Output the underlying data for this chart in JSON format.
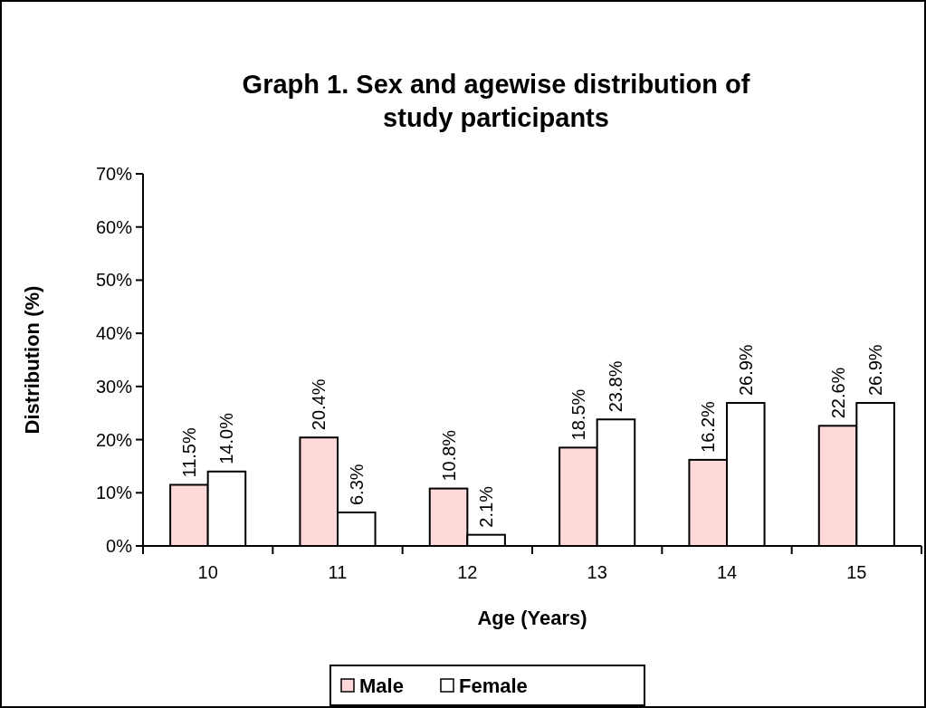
{
  "chart_data": {
    "type": "bar",
    "title": "Graph 1. Sex and agewise distribution of study participants",
    "xlabel": "Age (Years)",
    "ylabel": "Distribution (%)",
    "categories": [
      "10",
      "11",
      "12",
      "13",
      "14",
      "15"
    ],
    "series": [
      {
        "name": "Male",
        "color": "#ffd9d9",
        "values": [
          11.5,
          20.4,
          10.8,
          18.5,
          16.2,
          22.6
        ],
        "value_labels": [
          "11.5%",
          "20.4%",
          "10.8%",
          "18.5%",
          "16.2%",
          "22.6%"
        ]
      },
      {
        "name": "Female",
        "color": "#ffffff",
        "values": [
          14.0,
          6.3,
          2.1,
          23.8,
          26.9,
          26.9
        ],
        "value_labels": [
          "14.0%",
          "6.3%",
          "2.1%",
          "23.8%",
          "26.9%",
          "26.9%"
        ]
      }
    ],
    "ylim": [
      0,
      70
    ],
    "yticks": [
      {
        "value": 0,
        "label": "0%"
      },
      {
        "value": 10,
        "label": "10%"
      },
      {
        "value": 20,
        "label": "20%"
      },
      {
        "value": 30,
        "label": "30%"
      },
      {
        "value": 40,
        "label": "40%"
      },
      {
        "value": 50,
        "label": "50%"
      },
      {
        "value": 60,
        "label": "60%"
      },
      {
        "value": 70,
        "label": "70%"
      }
    ],
    "grid": false,
    "legend": "bottom"
  }
}
